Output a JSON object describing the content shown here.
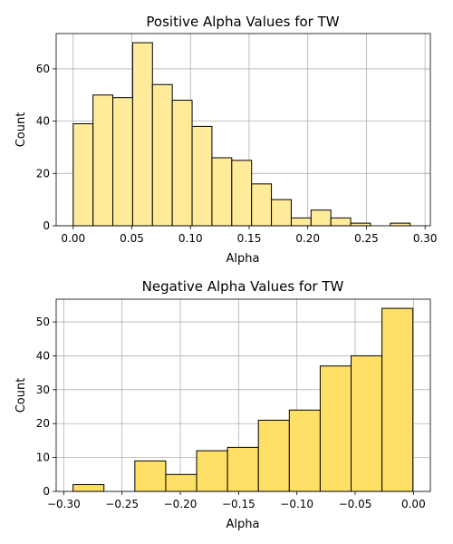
{
  "chart_data": [
    {
      "type": "bar",
      "title": "Positive Alpha Values for TW",
      "xlabel": "Alpha",
      "ylabel": "Count",
      "bar_color": "#ffeb99",
      "xlim": [
        -0.0145,
        0.3045
      ],
      "ylim": [
        0,
        73.5
      ],
      "xticks": [
        0.0,
        0.05,
        0.1,
        0.15,
        0.2,
        0.25,
        0.3
      ],
      "xtick_labels": [
        "0.00",
        "0.05",
        "0.10",
        "0.15",
        "0.20",
        "0.25",
        "0.30"
      ],
      "yticks": [
        0,
        20,
        40,
        60
      ],
      "ytick_labels": [
        "0",
        "20",
        "40",
        "60"
      ],
      "grid": true,
      "bins": [
        {
          "x0": 0.0,
          "x1": 0.0169,
          "count": 39
        },
        {
          "x0": 0.0169,
          "x1": 0.0338,
          "count": 50
        },
        {
          "x0": 0.0338,
          "x1": 0.0507,
          "count": 49
        },
        {
          "x0": 0.0507,
          "x1": 0.0676,
          "count": 70
        },
        {
          "x0": 0.0676,
          "x1": 0.0845,
          "count": 54
        },
        {
          "x0": 0.0845,
          "x1": 0.1014,
          "count": 48
        },
        {
          "x0": 0.1014,
          "x1": 0.1183,
          "count": 38
        },
        {
          "x0": 0.1183,
          "x1": 0.1352,
          "count": 26
        },
        {
          "x0": 0.1352,
          "x1": 0.1521,
          "count": 25
        },
        {
          "x0": 0.1521,
          "x1": 0.169,
          "count": 16
        },
        {
          "x0": 0.169,
          "x1": 0.1859,
          "count": 10
        },
        {
          "x0": 0.1859,
          "x1": 0.2028,
          "count": 3
        },
        {
          "x0": 0.2028,
          "x1": 0.2197,
          "count": 6
        },
        {
          "x0": 0.2197,
          "x1": 0.2366,
          "count": 3
        },
        {
          "x0": 0.2366,
          "x1": 0.2535,
          "count": 1
        },
        {
          "x0": 0.2535,
          "x1": 0.2704,
          "count": 0
        },
        {
          "x0": 0.2704,
          "x1": 0.2873,
          "count": 1
        }
      ]
    },
    {
      "type": "bar",
      "title": "Negative Alpha Values for TW",
      "xlabel": "Alpha",
      "ylabel": "Count",
      "bar_color": "#ffe066",
      "xlim": [
        -0.3065,
        0.0145
      ],
      "ylim": [
        0,
        56.7
      ],
      "xticks": [
        -0.3,
        -0.25,
        -0.2,
        -0.15,
        -0.1,
        -0.05,
        0.0
      ],
      "xtick_labels": [
        "−0.30",
        "−0.25",
        "−0.20",
        "−0.15",
        "−0.10",
        "−0.05",
        "0.00"
      ],
      "yticks": [
        0,
        10,
        20,
        30,
        40,
        50
      ],
      "ytick_labels": [
        "0",
        "10",
        "20",
        "30",
        "40",
        "50"
      ],
      "grid": true,
      "bins": [
        {
          "x0": -0.292,
          "x1": -0.2655,
          "count": 2
        },
        {
          "x0": -0.2655,
          "x1": -0.239,
          "count": 0
        },
        {
          "x0": -0.239,
          "x1": -0.2125,
          "count": 9
        },
        {
          "x0": -0.2125,
          "x1": -0.186,
          "count": 5
        },
        {
          "x0": -0.186,
          "x1": -0.1595,
          "count": 12
        },
        {
          "x0": -0.1595,
          "x1": -0.133,
          "count": 13
        },
        {
          "x0": -0.133,
          "x1": -0.1065,
          "count": 21
        },
        {
          "x0": -0.1065,
          "x1": -0.08,
          "count": 24
        },
        {
          "x0": -0.08,
          "x1": -0.0535,
          "count": 37
        },
        {
          "x0": -0.0535,
          "x1": -0.027,
          "count": 40
        },
        {
          "x0": -0.027,
          "x1": -0.0005,
          "count": 54
        }
      ]
    }
  ]
}
